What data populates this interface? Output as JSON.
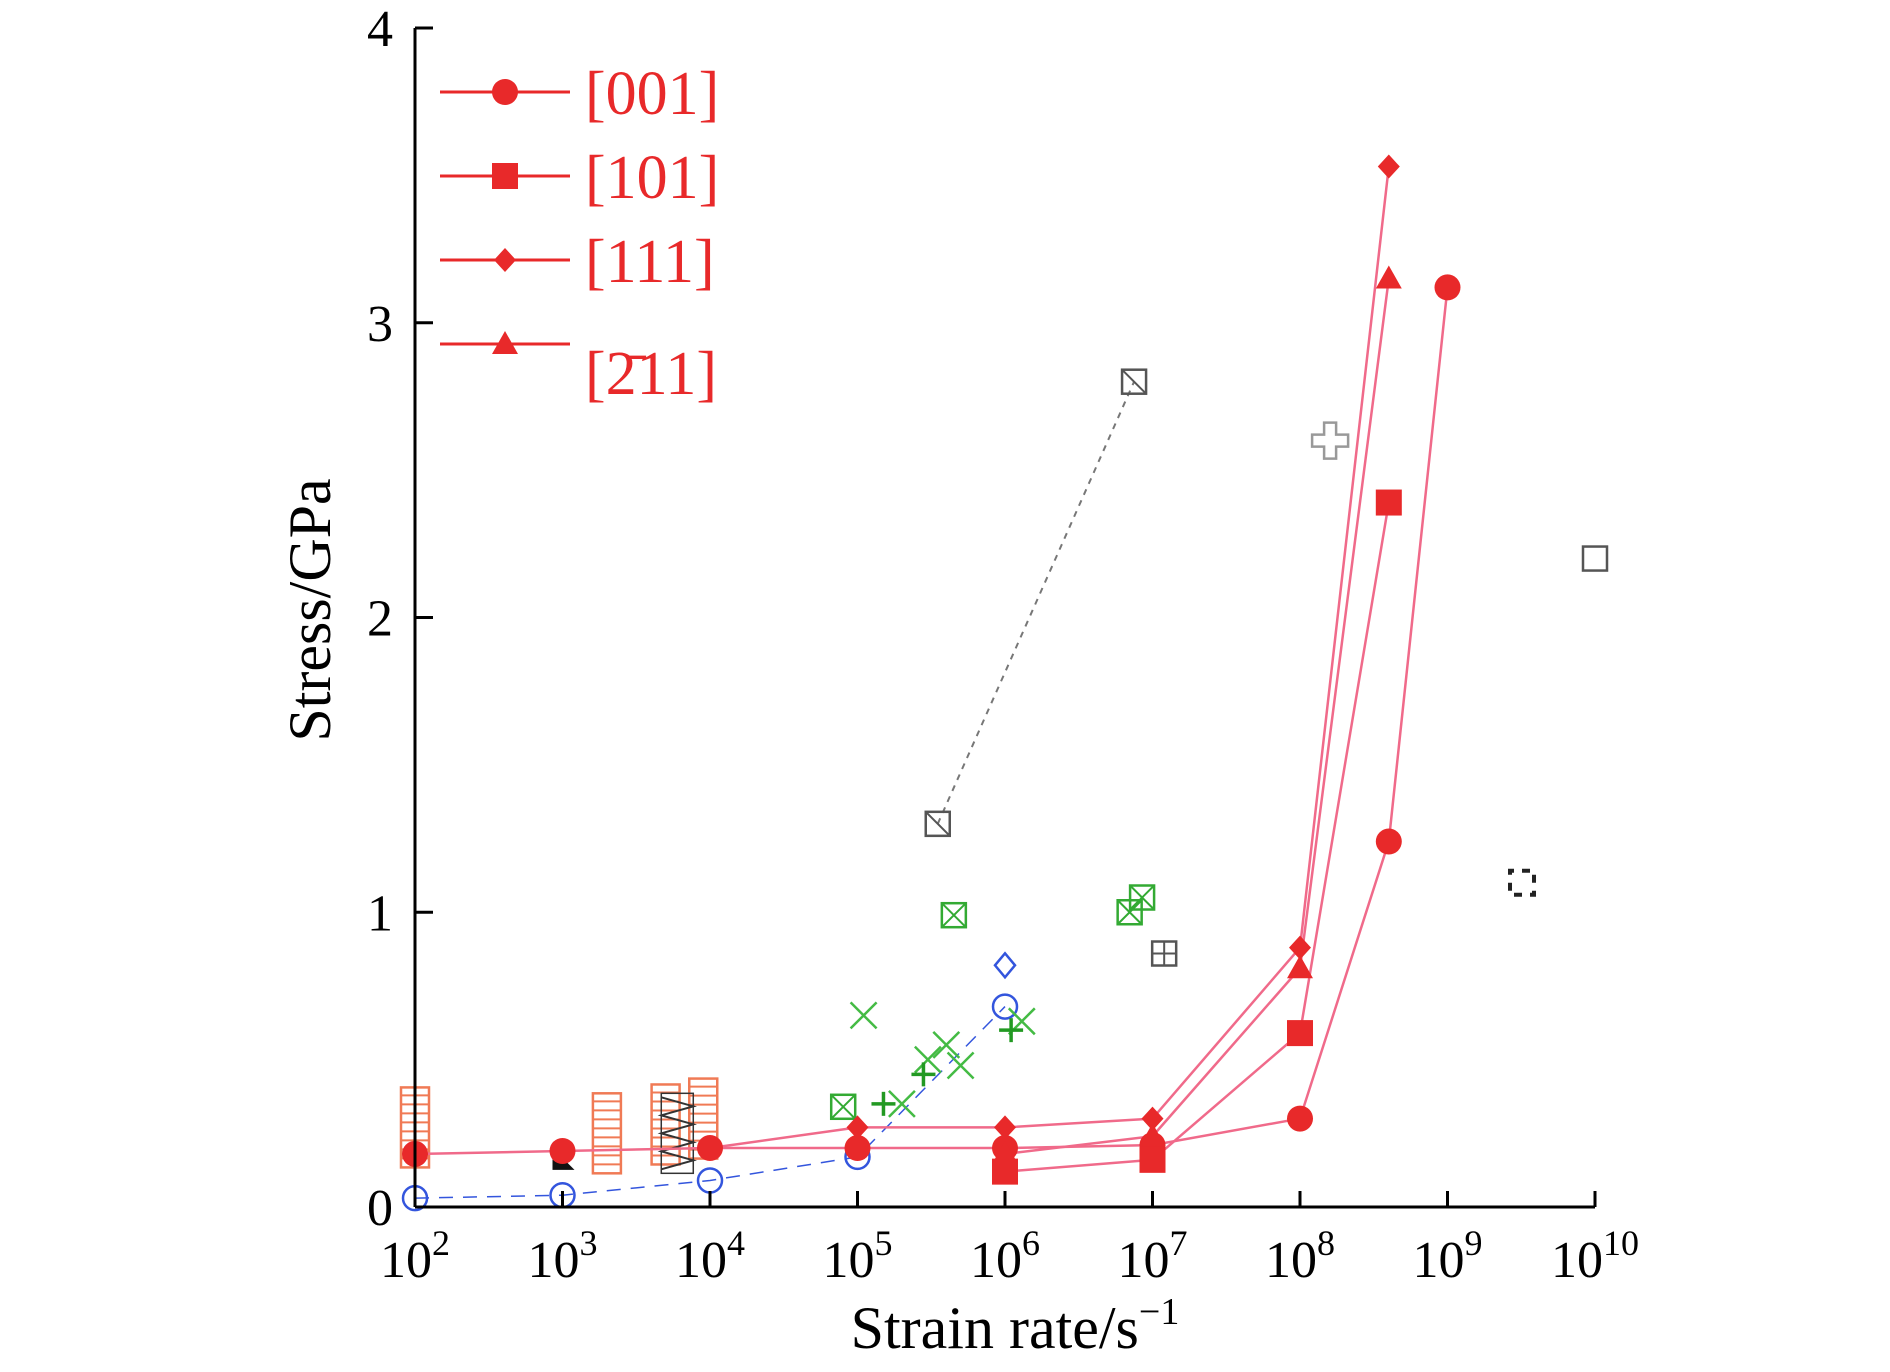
{
  "chart_data": {
    "type": "scatter",
    "title": "",
    "xlabel": "Strain rate/s",
    "xlabel_superscript": "−1",
    "ylabel": "Stress/GPa",
    "x_scale": "log",
    "xlim": [
      100,
      10000000000
    ],
    "ylim": [
      0,
      4
    ],
    "x_ticks": [
      {
        "base": "10",
        "exp": "2",
        "value": 100
      },
      {
        "base": "10",
        "exp": "3",
        "value": 1000
      },
      {
        "base": "10",
        "exp": "4",
        "value": 10000
      },
      {
        "base": "10",
        "exp": "5",
        "value": 100000
      },
      {
        "base": "10",
        "exp": "6",
        "value": 1000000
      },
      {
        "base": "10",
        "exp": "7",
        "value": 10000000
      },
      {
        "base": "10",
        "exp": "8",
        "value": 100000000
      },
      {
        "base": "10",
        "exp": "9",
        "value": 1000000000
      },
      {
        "base": "10",
        "exp": "10",
        "value": 10000000000
      }
    ],
    "y_ticks": [
      {
        "label": "0",
        "value": 0
      },
      {
        "label": "1",
        "value": 1
      },
      {
        "label": "2",
        "value": 2
      },
      {
        "label": "3",
        "value": 3
      },
      {
        "label": "4",
        "value": 4
      }
    ],
    "grid": false,
    "legend_position": "top-left",
    "series_color": "#e8292a",
    "line_color": "#f06a8a",
    "series": [
      {
        "name": "[001]",
        "marker": "circle",
        "points": [
          [
            100,
            0.18
          ],
          [
            1000,
            0.19
          ],
          [
            10000,
            0.2
          ],
          [
            100000,
            0.2
          ],
          [
            1000000,
            0.2
          ],
          [
            10000000,
            0.21
          ],
          [
            100000000,
            0.3
          ],
          [
            400000000,
            1.24
          ],
          [
            1000000000,
            3.12
          ]
        ]
      },
      {
        "name": "[101]",
        "marker": "square",
        "points": [
          [
            1000000,
            0.12
          ],
          [
            10000000,
            0.16
          ],
          [
            100000000,
            0.59
          ],
          [
            400000000,
            2.39
          ]
        ]
      },
      {
        "name": "[111]",
        "marker": "diamond",
        "points": [
          [
            10000,
            0.2
          ],
          [
            100000,
            0.27
          ],
          [
            1000000,
            0.27
          ],
          [
            10000000,
            0.3
          ],
          [
            100000000,
            0.88
          ],
          [
            400000000,
            3.53
          ]
        ]
      },
      {
        "name": "[2̄11]",
        "marker": "triangle",
        "points": [
          [
            1000000,
            0.18
          ],
          [
            10000000,
            0.24
          ],
          [
            100000000,
            0.81
          ],
          [
            400000000,
            3.15
          ]
        ]
      }
    ],
    "reference_data": [
      {
        "marker": "hatched-square",
        "color": "#f07a55",
        "points": [
          [
            100,
            0.27
          ],
          [
            2000,
            0.25
          ],
          [
            5000,
            0.28
          ],
          [
            9000,
            0.3
          ]
        ]
      },
      {
        "marker": "zigzag",
        "color": "#333333",
        "points": [
          [
            6000,
            0.25
          ]
        ]
      },
      {
        "marker": "filled-triangle",
        "color": "#111111",
        "points": [
          [
            1000,
            0.16
          ]
        ]
      },
      {
        "marker": "open-circle",
        "color": "#3355dd",
        "points": [
          [
            100,
            0.03
          ],
          [
            1000,
            0.04
          ],
          [
            10000,
            0.09
          ],
          [
            100000,
            0.17
          ],
          [
            1000000,
            0.68
          ]
        ]
      },
      {
        "marker": "open-diamond",
        "color": "#3355dd",
        "points": [
          [
            1000000,
            0.82
          ]
        ]
      },
      {
        "marker": "crossed-square",
        "color": "#33aa33",
        "points": [
          [
            80000,
            0.34
          ],
          [
            450000,
            0.99
          ],
          [
            7000000,
            1.0
          ],
          [
            8500000,
            1.05
          ]
        ]
      },
      {
        "marker": "x",
        "color": "#44bb44",
        "points": [
          [
            110000,
            0.65
          ],
          [
            200000,
            0.35
          ],
          [
            300000,
            0.5
          ],
          [
            400000,
            0.55
          ],
          [
            500000,
            0.48
          ],
          [
            1300000,
            0.63
          ]
        ]
      },
      {
        "marker": "plus",
        "color": "#229922",
        "points": [
          [
            150000,
            0.35
          ],
          [
            280000,
            0.45
          ],
          [
            1100000,
            0.6
          ]
        ]
      },
      {
        "marker": "slashed-square",
        "color": "#555555",
        "points": [
          [
            350000,
            1.3
          ],
          [
            7500000,
            2.8
          ]
        ]
      },
      {
        "marker": "grid-square",
        "color": "#555555",
        "points": [
          [
            12000000,
            0.86
          ]
        ]
      },
      {
        "marker": "open-cross",
        "color": "#999999",
        "points": [
          [
            160000000,
            2.6
          ]
        ]
      },
      {
        "marker": "bracket-square",
        "color": "#222222",
        "points": [
          [
            3200000000,
            1.1
          ]
        ]
      },
      {
        "marker": "open-square",
        "color": "#555555",
        "points": [
          [
            10000000000,
            2.2
          ]
        ]
      }
    ]
  }
}
